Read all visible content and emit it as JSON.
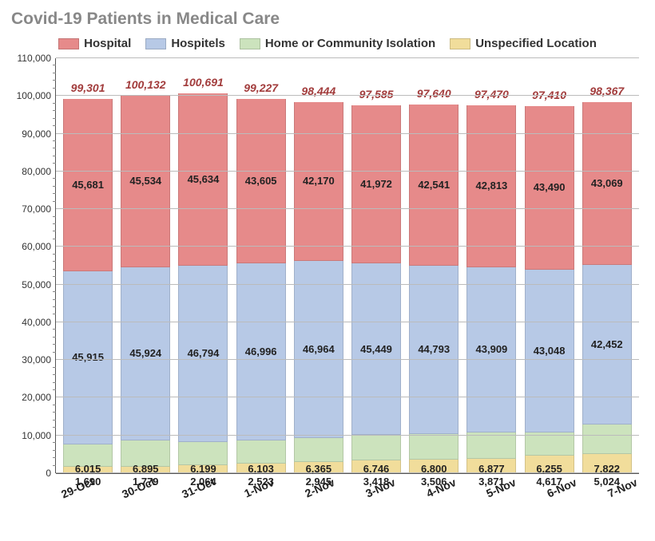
{
  "chart": {
    "type": "stacked-bar",
    "title": "Covid-19 Patients in Medical Care",
    "title_color": "#888888",
    "title_fontsize": 21,
    "background_color": "#ffffff",
    "grid_color": "#bbbbbb",
    "ylim": [
      0,
      110000
    ],
    "ytick_step": 10000,
    "minor_tick_step": 2000,
    "y_tick_labels": [
      "0",
      "10,000",
      "20,000",
      "30,000",
      "40,000",
      "50,000",
      "60,000",
      "70,000",
      "80,000",
      "90,000",
      "100,000",
      "110,000"
    ],
    "label_fontsize": 12,
    "value_label_fontsize": 13,
    "total_label_color": "#a23c3c",
    "categories": [
      "29-Oct",
      "30-Oct",
      "31-Oct",
      "1-Nov",
      "2-Nov",
      "3-Nov",
      "4-Nov",
      "5-Nov",
      "6-Nov",
      "7-Nov"
    ],
    "series": [
      {
        "name": "Hospital",
        "color": "#e68a8a"
      },
      {
        "name": "Hospitels",
        "color": "#b7c9e6"
      },
      {
        "name": "Home or Community Isolation",
        "color": "#cce3bd"
      },
      {
        "name": "Unspecified Location",
        "color": "#f1dd9b"
      }
    ],
    "data": [
      {
        "hospital": 45681,
        "hospitels": 45915,
        "home": 6015,
        "unspecified": 1690,
        "total": 99301,
        "hospital_label": "45,681",
        "hospitels_label": "45,915",
        "home_label": "6,015",
        "unspecified_label": "1,690",
        "total_label": "99,301"
      },
      {
        "hospital": 45534,
        "hospitels": 45924,
        "home": 6895,
        "unspecified": 1779,
        "total": 100132,
        "hospital_label": "45,534",
        "hospitels_label": "45,924",
        "home_label": "6,895",
        "unspecified_label": "1,779",
        "total_label": "100,132"
      },
      {
        "hospital": 45634,
        "hospitels": 46794,
        "home": 6199,
        "unspecified": 2064,
        "total": 100691,
        "hospital_label": "45,634",
        "hospitels_label": "46,794",
        "home_label": "6,199",
        "unspecified_label": "2,064",
        "total_label": "100,691"
      },
      {
        "hospital": 43605,
        "hospitels": 46996,
        "home": 6103,
        "unspecified": 2523,
        "total": 99227,
        "hospital_label": "43,605",
        "hospitels_label": "46,996",
        "home_label": "6,103",
        "unspecified_label": "2,523",
        "total_label": "99,227"
      },
      {
        "hospital": 42170,
        "hospitels": 46964,
        "home": 6365,
        "unspecified": 2945,
        "total": 98444,
        "hospital_label": "42,170",
        "hospitels_label": "46,964",
        "home_label": "6,365",
        "unspecified_label": "2,945",
        "total_label": "98,444"
      },
      {
        "hospital": 41972,
        "hospitels": 45449,
        "home": 6746,
        "unspecified": 3418,
        "total": 97585,
        "hospital_label": "41,972",
        "hospitels_label": "45,449",
        "home_label": "6,746",
        "unspecified_label": "3,418",
        "total_label": "97,585"
      },
      {
        "hospital": 42541,
        "hospitels": 44793,
        "home": 6800,
        "unspecified": 3506,
        "total": 97640,
        "hospital_label": "42,541",
        "hospitels_label": "44,793",
        "home_label": "6,800",
        "unspecified_label": "3,506",
        "total_label": "97,640"
      },
      {
        "hospital": 42813,
        "hospitels": 43909,
        "home": 6877,
        "unspecified": 3871,
        "total": 97470,
        "hospital_label": "42,813",
        "hospitels_label": "43,909",
        "home_label": "6,877",
        "unspecified_label": "3,871",
        "total_label": "97,470"
      },
      {
        "hospital": 43490,
        "hospitels": 43048,
        "home": 6255,
        "unspecified": 4617,
        "total": 97410,
        "hospital_label": "43,490",
        "hospitels_label": "43,048",
        "home_label": "6,255",
        "unspecified_label": "4,617",
        "total_label": "97,410"
      },
      {
        "hospital": 43069,
        "hospitels": 42452,
        "home": 7822,
        "unspecified": 5024,
        "total": 98367,
        "hospital_label": "43,069",
        "hospitels_label": "42,452",
        "home_label": "7,822",
        "unspecified_label": "5,024",
        "total_label": "98,367"
      }
    ]
  }
}
